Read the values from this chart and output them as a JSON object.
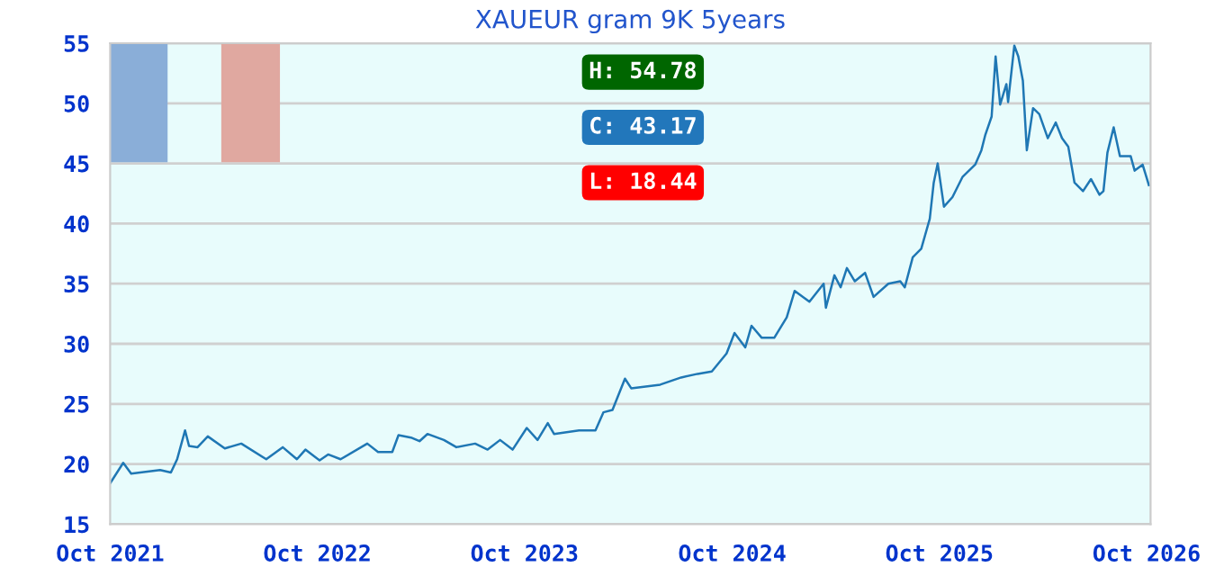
{
  "chart_data": {
    "type": "line",
    "title": "XAUEUR gram 9K 5years",
    "x": [
      "2021-10-01",
      "2021-10-24",
      "2021-11-07",
      "2021-12-28",
      "2022-01-16",
      "2022-01-27",
      "2022-02-10",
      "2022-02-17",
      "2022-03-04",
      "2022-03-22",
      "2022-04-21",
      "2022-05-20",
      "2022-07-03",
      "2022-08-01",
      "2022-08-26",
      "2022-09-10",
      "2022-10-05",
      "2022-10-20",
      "2022-11-11",
      "2022-12-28",
      "2023-01-16",
      "2023-02-10",
      "2023-02-21",
      "2023-03-15",
      "2023-03-30",
      "2023-04-13",
      "2023-05-12",
      "2023-06-03",
      "2023-07-06",
      "2023-07-28",
      "2023-08-19",
      "2023-09-10",
      "2023-10-05",
      "2023-10-24",
      "2023-11-11",
      "2023-11-22",
      "2024-01-05",
      "2024-02-03",
      "2024-02-17",
      "2024-03-04",
      "2024-03-26",
      "2024-04-06",
      "2024-05-27",
      "2024-07-03",
      "2024-08-01",
      "2024-08-26",
      "2024-09-21",
      "2024-10-05",
      "2024-10-24",
      "2024-11-04",
      "2024-11-22",
      "2024-12-14",
      "2025-01-05",
      "2025-01-19",
      "2025-02-14",
      "2025-03-11",
      "2025-03-15",
      "2025-03-30",
      "2025-04-10",
      "2025-04-21",
      "2025-05-05",
      "2025-05-23",
      "2025-06-07",
      "2025-07-03",
      "2025-07-24",
      "2025-08-01",
      "2025-08-15",
      "2025-08-30",
      "2025-09-14",
      "2025-09-21",
      "2025-09-28",
      "2025-10-09",
      "2025-10-24",
      "2025-11-11",
      "2025-12-03",
      "2025-12-14",
      "2025-12-21",
      "2026-01-01",
      "2026-01-08",
      "2026-01-16",
      "2026-01-27",
      "2026-01-30",
      "2026-02-10",
      "2026-02-17",
      "2026-02-25",
      "2026-03-04",
      "2026-03-15",
      "2026-03-26",
      "2026-04-10",
      "2026-04-24",
      "2026-05-05",
      "2026-05-16",
      "2026-05-27",
      "2026-06-11",
      "2026-06-25",
      "2026-07-10",
      "2026-07-17",
      "2026-07-24",
      "2026-08-04",
      "2026-08-15",
      "2026-09-03",
      "2026-09-10",
      "2026-09-24",
      "2026-10-05"
    ],
    "series": [
      {
        "color": "#1f77b4",
        "values": [
          18.4,
          20.1,
          19.2,
          19.5,
          19.3,
          20.4,
          22.8,
          21.5,
          21.4,
          22.3,
          21.3,
          21.7,
          20.4,
          21.4,
          20.4,
          21.2,
          20.3,
          20.8,
          20.4,
          21.7,
          21.0,
          21.0,
          22.4,
          22.2,
          21.9,
          22.5,
          22.0,
          21.4,
          21.7,
          21.2,
          22.0,
          21.2,
          23.0,
          22.0,
          23.4,
          22.5,
          22.8,
          22.8,
          24.3,
          24.5,
          27.1,
          26.3,
          26.6,
          27.2,
          27.5,
          27.7,
          29.2,
          30.9,
          29.7,
          31.5,
          30.5,
          30.5,
          32.2,
          34.4,
          33.5,
          35.0,
          33.0,
          35.7,
          34.7,
          36.3,
          35.2,
          35.9,
          33.9,
          35.0,
          35.2,
          34.7,
          37.2,
          37.9,
          40.4,
          43.4,
          45.0,
          41.4,
          42.2,
          43.9,
          44.9,
          46.1,
          47.4,
          48.9,
          53.9,
          49.9,
          51.6,
          50.1,
          54.8,
          53.9,
          51.9,
          46.1,
          49.6,
          49.1,
          47.1,
          48.4,
          47.1,
          46.4,
          43.4,
          42.7,
          43.7,
          42.4,
          42.7,
          45.9,
          48.0,
          45.6,
          45.6,
          44.4,
          44.9,
          43.2
        ]
      }
    ],
    "xlim": [
      "2021-10-01",
      "2026-10-08"
    ],
    "xticks": [
      {
        "value": "2021-10-01",
        "label": "Oct 2021"
      },
      {
        "value": "2022-10-01",
        "label": "Oct 2022"
      },
      {
        "value": "2023-10-01",
        "label": "Oct 2023"
      },
      {
        "value": "2024-10-01",
        "label": "Oct 2024"
      },
      {
        "value": "2025-10-01",
        "label": "Oct 2025"
      },
      {
        "value": "2026-10-01",
        "label": "Oct 2026"
      }
    ],
    "ylim": [
      15,
      55
    ],
    "yticks": [
      15,
      20,
      25,
      30,
      35,
      40,
      45,
      50,
      55
    ],
    "grid": "y",
    "legend": false,
    "annotations": [
      "H: 54.78",
      "C: 43.17",
      "L: 18.44"
    ]
  }
}
